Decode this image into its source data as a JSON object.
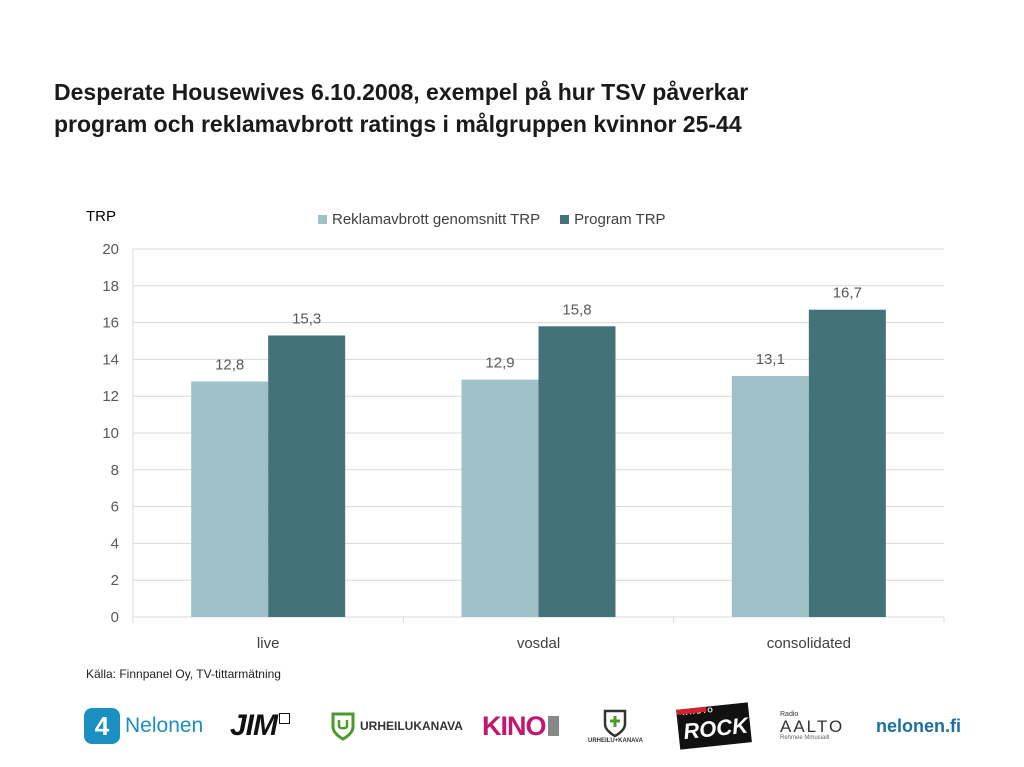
{
  "slide": {
    "title_line1": "Desperate Housewives 6.10.2008, exempel på hur TSV påverkar",
    "title_line2": "program och reklamavbrott ratings i målgruppen kvinnor 25-44",
    "source": "Källa: Finnpanel Oy, TV-tittarmätning"
  },
  "chart_data": {
    "type": "bar",
    "title": "",
    "xlabel": "",
    "ylabel": "TRP",
    "categories": [
      "live",
      "vosdal",
      "consolidated"
    ],
    "series": [
      {
        "name": "Reklamavbrott genomsnitt TRP",
        "values": [
          12.8,
          12.9,
          13.1
        ],
        "labels": [
          "12,8",
          "12,9",
          "13,1"
        ],
        "color": "#9fc2c8"
      },
      {
        "name": "Program TRP",
        "values": [
          15.3,
          15.8,
          16.7
        ],
        "labels": [
          "15,3",
          "15,8",
          "16,7"
        ],
        "color": "#44727a"
      }
    ],
    "ylim": [
      0,
      20
    ],
    "yticks": [
      0,
      2,
      4,
      6,
      8,
      10,
      12,
      14,
      16,
      18,
      20
    ],
    "grid": true,
    "legend": "top"
  },
  "logos": {
    "nelonen": {
      "text": "Nelonen",
      "digit": "4",
      "color": "#1b8fbf"
    },
    "jim": {
      "text": "JIM"
    },
    "urheilukanava": {
      "text": "URHEILUKANAVA",
      "color": "#4a9a2c"
    },
    "kino": {
      "text": "KINO",
      "color": "#c4166e"
    },
    "urheilu_plus": {
      "text": "URHEILU+KANAVA"
    },
    "radio_rock": {
      "top": "RADIO",
      "text": "ROCK",
      "color": "#d2232a"
    },
    "radio_aalto": {
      "top": "Radio",
      "text": "AALTO",
      "sub": "Rehmee Mmusiaill",
      "color": "#c4166e"
    },
    "nelonen_fi": {
      "text": "nelonen.fi",
      "color": "#1b6fa0"
    }
  },
  "colors": {
    "grid": "#d9d9d9",
    "axis_text": "#595959"
  }
}
